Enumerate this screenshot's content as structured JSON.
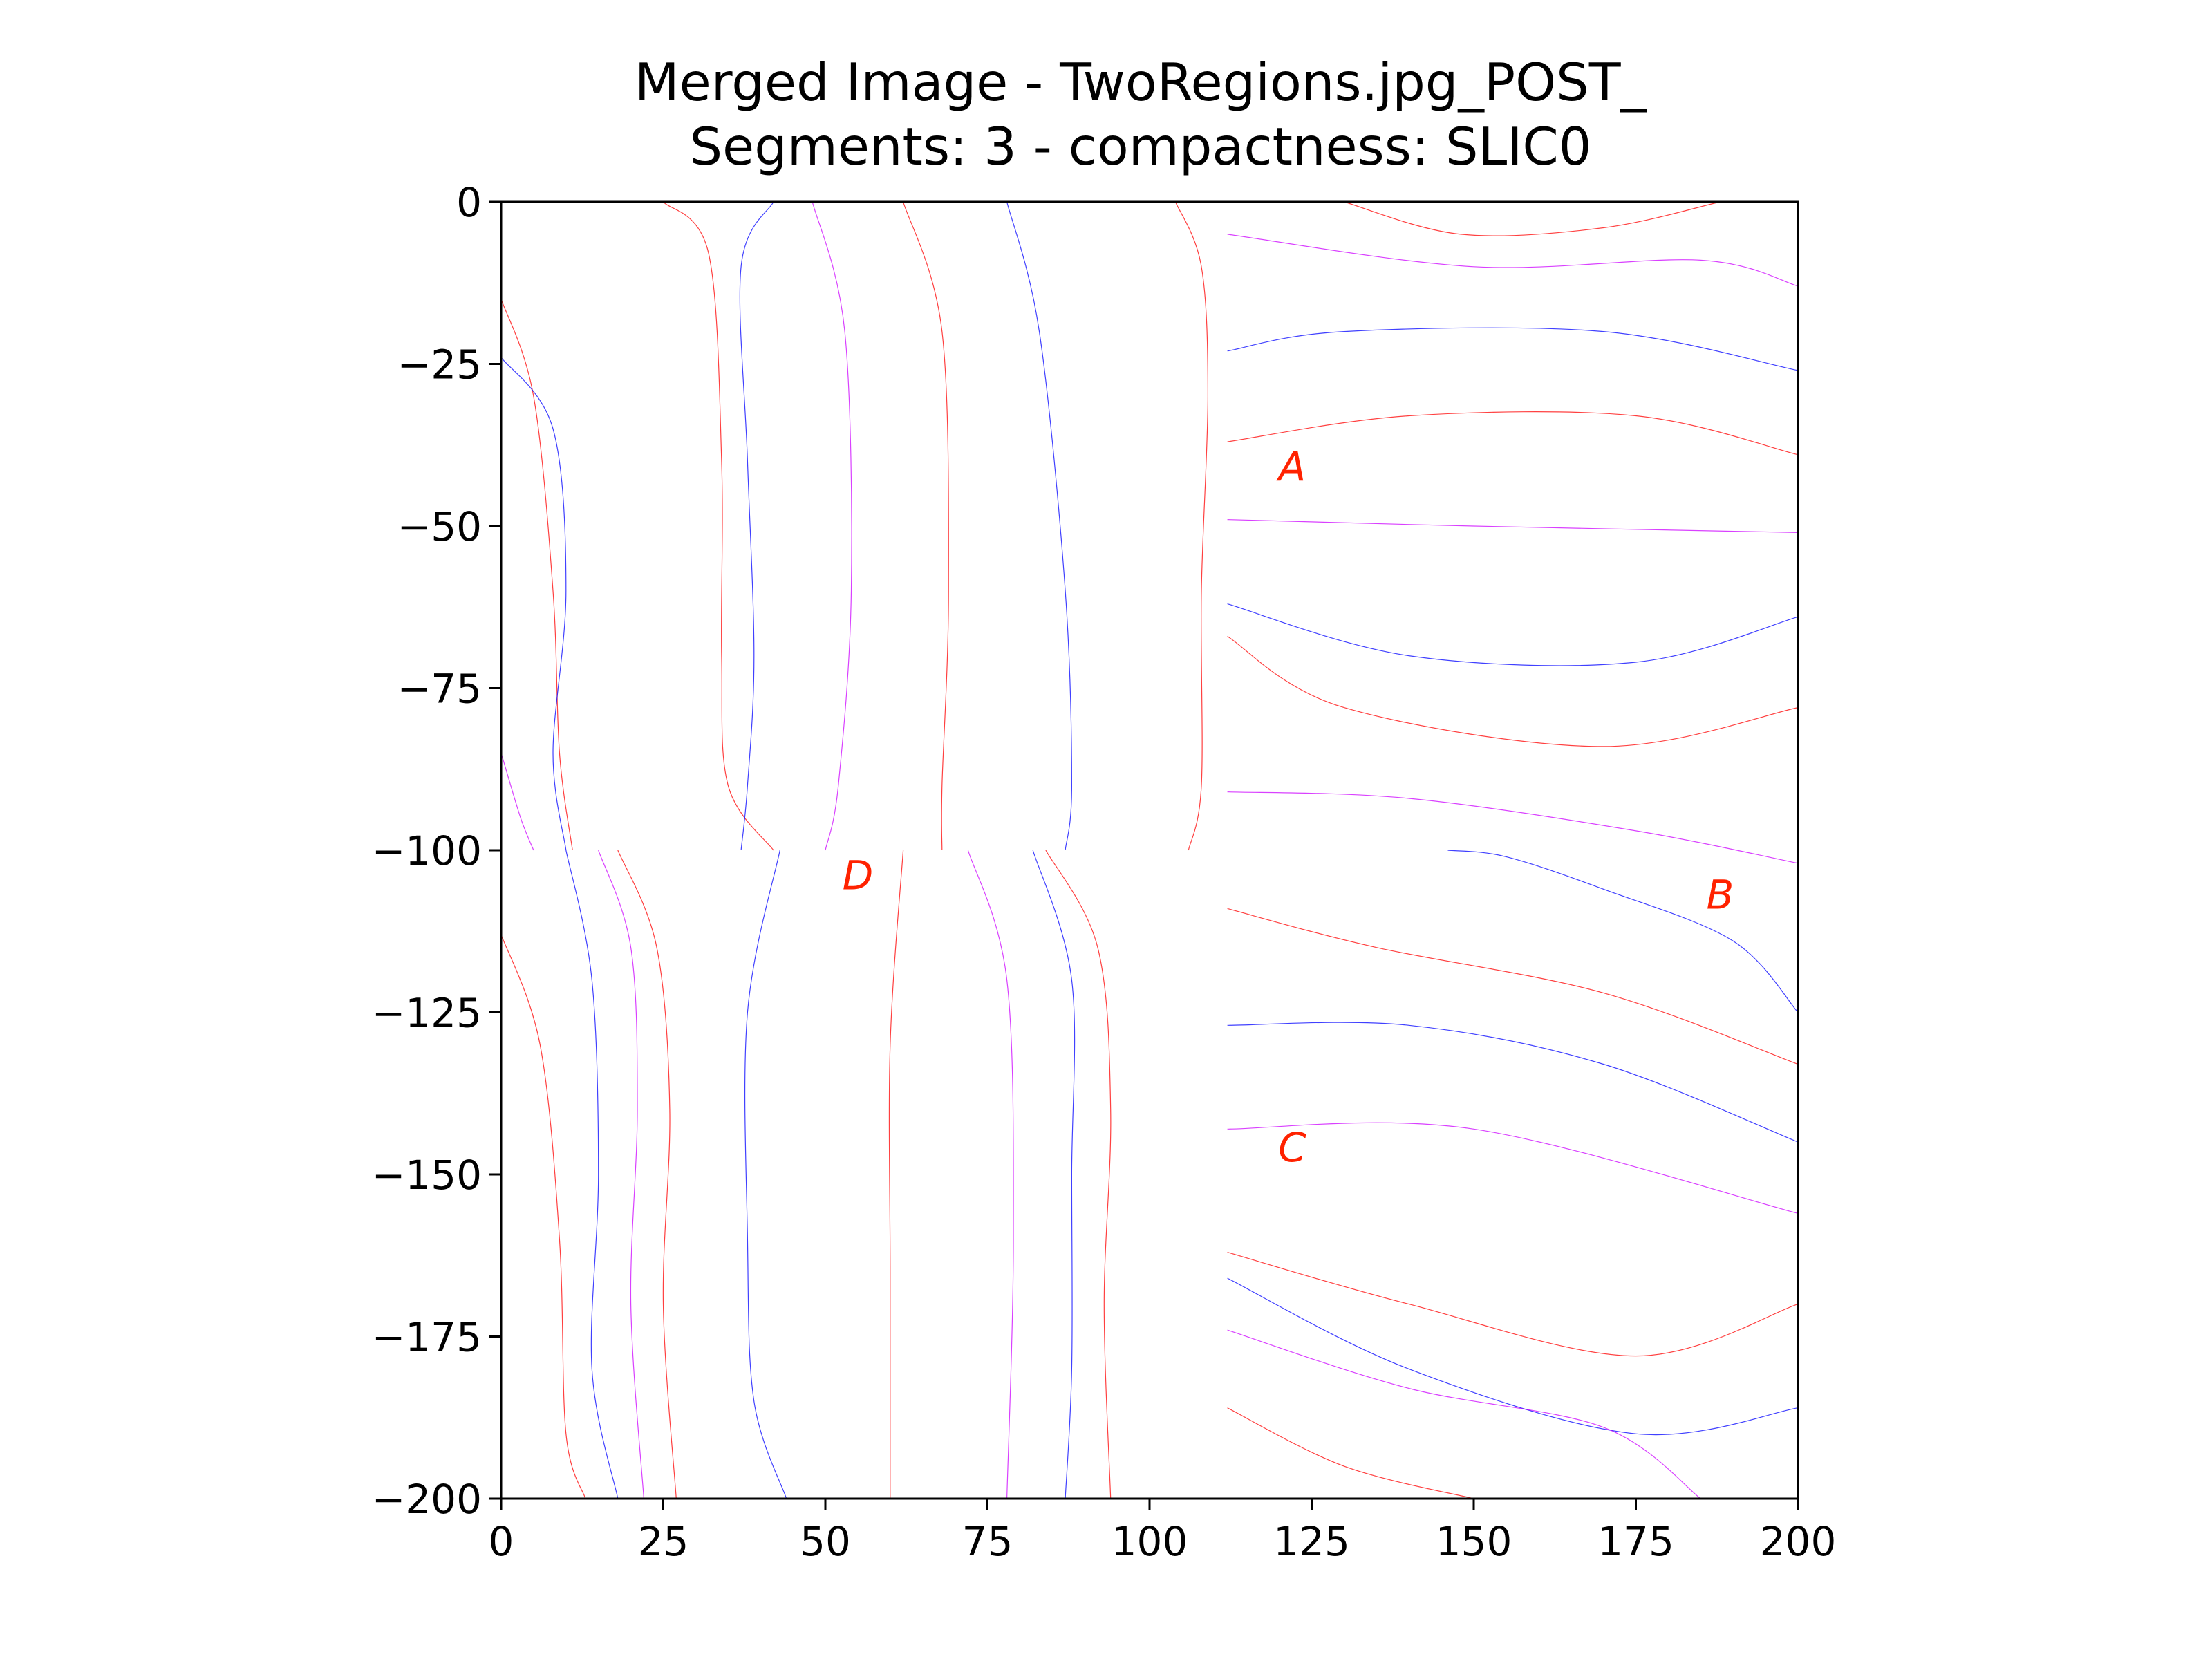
{
  "figure": {
    "title_line1": "Merged Image - TwoRegions.jpg_POST_",
    "title_line2": "Segments: 3 - compactness: SLIC0"
  },
  "chart_data": {
    "type": "contour",
    "title": "Merged Image - TwoRegions.jpg_POST_\nSegments: 3 - compactness: SLIC0",
    "xlabel": "",
    "ylabel": "",
    "xlim": [
      0,
      200
    ],
    "ylim": [
      -200,
      0
    ],
    "x_ticks": [
      0,
      25,
      50,
      75,
      100,
      125,
      150,
      175,
      200
    ],
    "y_ticks": [
      0,
      -25,
      -50,
      -75,
      -100,
      -125,
      -150,
      -175,
      -200
    ],
    "x_tick_labels": [
      "0",
      "25",
      "50",
      "75",
      "100",
      "125",
      "150",
      "175",
      "200"
    ],
    "y_tick_labels": [
      "0",
      "−25",
      "−50",
      "−75",
      "−100",
      "−125",
      "−150",
      "−175",
      "−200"
    ],
    "grid": false,
    "line_colors": [
      "#ff0000",
      "#0000ff",
      "#cc00ff"
    ],
    "region_labels": [
      {
        "text": "A",
        "x": 122,
        "y": -43
      },
      {
        "text": "B",
        "x": 188,
        "y": -109
      },
      {
        "text": "C",
        "x": 122,
        "y": -148
      },
      {
        "text": "D",
        "x": 55,
        "y": -106
      }
    ],
    "contour_lines": [
      {
        "color": "#ff0000",
        "points": [
          [
            0,
            -15
          ],
          [
            5,
            -30
          ],
          [
            8,
            -60
          ],
          [
            9,
            -85
          ],
          [
            11,
            -100
          ]
        ]
      },
      {
        "color": "#ff0000",
        "points": [
          [
            25,
            0
          ],
          [
            32,
            -8
          ],
          [
            34,
            -40
          ],
          [
            34,
            -70
          ],
          [
            35,
            -90
          ],
          [
            42,
            -100
          ]
        ]
      },
      {
        "color": "#ff0000",
        "points": [
          [
            62,
            0
          ],
          [
            68,
            -20
          ],
          [
            69,
            -60
          ],
          [
            68,
            -90
          ],
          [
            68,
            -100
          ]
        ]
      },
      {
        "color": "#ff0000",
        "points": [
          [
            104,
            0
          ],
          [
            108,
            -10
          ],
          [
            109,
            -30
          ],
          [
            108,
            -60
          ],
          [
            108,
            -90
          ],
          [
            106,
            -100
          ]
        ]
      },
      {
        "color": "#ff0000",
        "points": [
          [
            0,
            -113
          ],
          [
            6,
            -130
          ],
          [
            9,
            -160
          ],
          [
            10,
            -190
          ],
          [
            13,
            -200
          ]
        ]
      },
      {
        "color": "#ff0000",
        "points": [
          [
            18,
            -100
          ],
          [
            24,
            -115
          ],
          [
            26,
            -140
          ],
          [
            25,
            -170
          ],
          [
            27,
            -200
          ]
        ]
      },
      {
        "color": "#ff0000",
        "points": [
          [
            62,
            -100
          ],
          [
            60,
            -130
          ],
          [
            60,
            -165
          ],
          [
            60,
            -200
          ]
        ]
      },
      {
        "color": "#ff0000",
        "points": [
          [
            84,
            -100
          ],
          [
            92,
            -115
          ],
          [
            94,
            -140
          ],
          [
            93,
            -170
          ],
          [
            94,
            -200
          ]
        ]
      },
      {
        "color": "#ff0000",
        "points": [
          [
            130,
            0
          ],
          [
            148,
            -5
          ],
          [
            170,
            -4
          ],
          [
            188,
            0
          ]
        ]
      },
      {
        "color": "#ff0000",
        "points": [
          [
            112,
            -37
          ],
          [
            140,
            -33
          ],
          [
            175,
            -33
          ],
          [
            200,
            -39
          ]
        ]
      },
      {
        "color": "#ff0000",
        "points": [
          [
            112,
            -67
          ],
          [
            130,
            -78
          ],
          [
            170,
            -84
          ],
          [
            200,
            -78
          ]
        ]
      },
      {
        "color": "#ff0000",
        "points": [
          [
            112,
            -109
          ],
          [
            135,
            -115
          ],
          [
            170,
            -122
          ],
          [
            200,
            -133
          ]
        ]
      },
      {
        "color": "#ff0000",
        "points": [
          [
            112,
            -162
          ],
          [
            140,
            -170
          ],
          [
            175,
            -178
          ],
          [
            200,
            -170
          ]
        ]
      },
      {
        "color": "#ff0000",
        "points": [
          [
            112,
            -186
          ],
          [
            130,
            -195
          ],
          [
            150,
            -200
          ]
        ]
      },
      {
        "color": "#0000ff",
        "points": [
          [
            0,
            -24
          ],
          [
            8,
            -35
          ],
          [
            10,
            -60
          ],
          [
            8,
            -85
          ],
          [
            10,
            -100
          ]
        ]
      },
      {
        "color": "#0000ff",
        "points": [
          [
            42,
            0
          ],
          [
            37,
            -10
          ],
          [
            38,
            -40
          ],
          [
            39,
            -70
          ],
          [
            38,
            -90
          ],
          [
            37,
            -100
          ]
        ]
      },
      {
        "color": "#0000ff",
        "points": [
          [
            78,
            0
          ],
          [
            83,
            -20
          ],
          [
            87,
            -60
          ],
          [
            88,
            -90
          ],
          [
            87,
            -100
          ]
        ]
      },
      {
        "color": "#0000ff",
        "points": [
          [
            10,
            -100
          ],
          [
            14,
            -120
          ],
          [
            15,
            -150
          ],
          [
            14,
            -180
          ],
          [
            18,
            -200
          ]
        ]
      },
      {
        "color": "#0000ff",
        "points": [
          [
            43,
            -100
          ],
          [
            38,
            -125
          ],
          [
            38,
            -160
          ],
          [
            39,
            -185
          ],
          [
            44,
            -200
          ]
        ]
      },
      {
        "color": "#0000ff",
        "points": [
          [
            82,
            -100
          ],
          [
            88,
            -120
          ],
          [
            88,
            -150
          ],
          [
            88,
            -180
          ],
          [
            87,
            -200
          ]
        ]
      },
      {
        "color": "#0000ff",
        "points": [
          [
            112,
            -23
          ],
          [
            130,
            -20
          ],
          [
            170,
            -20
          ],
          [
            200,
            -26
          ]
        ]
      },
      {
        "color": "#0000ff",
        "points": [
          [
            112,
            -62
          ],
          [
            140,
            -70
          ],
          [
            175,
            -71
          ],
          [
            200,
            -64
          ]
        ]
      },
      {
        "color": "#0000ff",
        "points": [
          [
            146,
            -100
          ],
          [
            155,
            -101
          ],
          [
            170,
            -106
          ],
          [
            190,
            -114
          ],
          [
            200,
            -125
          ]
        ]
      },
      {
        "color": "#0000ff",
        "points": [
          [
            112,
            -127
          ],
          [
            140,
            -127
          ],
          [
            170,
            -133
          ],
          [
            200,
            -145
          ]
        ]
      },
      {
        "color": "#0000ff",
        "points": [
          [
            112,
            -166
          ],
          [
            140,
            -180
          ],
          [
            175,
            -190
          ],
          [
            200,
            -186
          ]
        ]
      },
      {
        "color": "#cc00ff",
        "points": [
          [
            112,
            -5
          ],
          [
            150,
            -10
          ],
          [
            185,
            -9
          ],
          [
            200,
            -13
          ]
        ]
      },
      {
        "color": "#cc00ff",
        "points": [
          [
            112,
            -49
          ],
          [
            150,
            -50
          ],
          [
            200,
            -51
          ]
        ]
      },
      {
        "color": "#cc00ff",
        "points": [
          [
            112,
            -91
          ],
          [
            140,
            -92
          ],
          [
            175,
            -97
          ],
          [
            200,
            -102
          ]
        ]
      },
      {
        "color": "#cc00ff",
        "points": [
          [
            112,
            -143
          ],
          [
            150,
            -143
          ],
          [
            200,
            -156
          ]
        ]
      },
      {
        "color": "#cc00ff",
        "points": [
          [
            112,
            -174
          ],
          [
            140,
            -183
          ],
          [
            170,
            -189
          ],
          [
            185,
            -200
          ]
        ]
      },
      {
        "color": "#cc00ff",
        "points": [
          [
            15,
            -100
          ],
          [
            20,
            -115
          ],
          [
            21,
            -140
          ],
          [
            20,
            -170
          ],
          [
            22,
            -200
          ]
        ]
      },
      {
        "color": "#cc00ff",
        "points": [
          [
            0,
            -85
          ],
          [
            3,
            -95
          ],
          [
            5,
            -100
          ]
        ]
      },
      {
        "color": "#cc00ff",
        "points": [
          [
            48,
            0
          ],
          [
            53,
            -20
          ],
          [
            54,
            -60
          ],
          [
            52,
            -90
          ],
          [
            50,
            -100
          ]
        ]
      },
      {
        "color": "#cc00ff",
        "points": [
          [
            72,
            -100
          ],
          [
            78,
            -120
          ],
          [
            79,
            -160
          ],
          [
            78,
            -200
          ]
        ]
      }
    ]
  }
}
